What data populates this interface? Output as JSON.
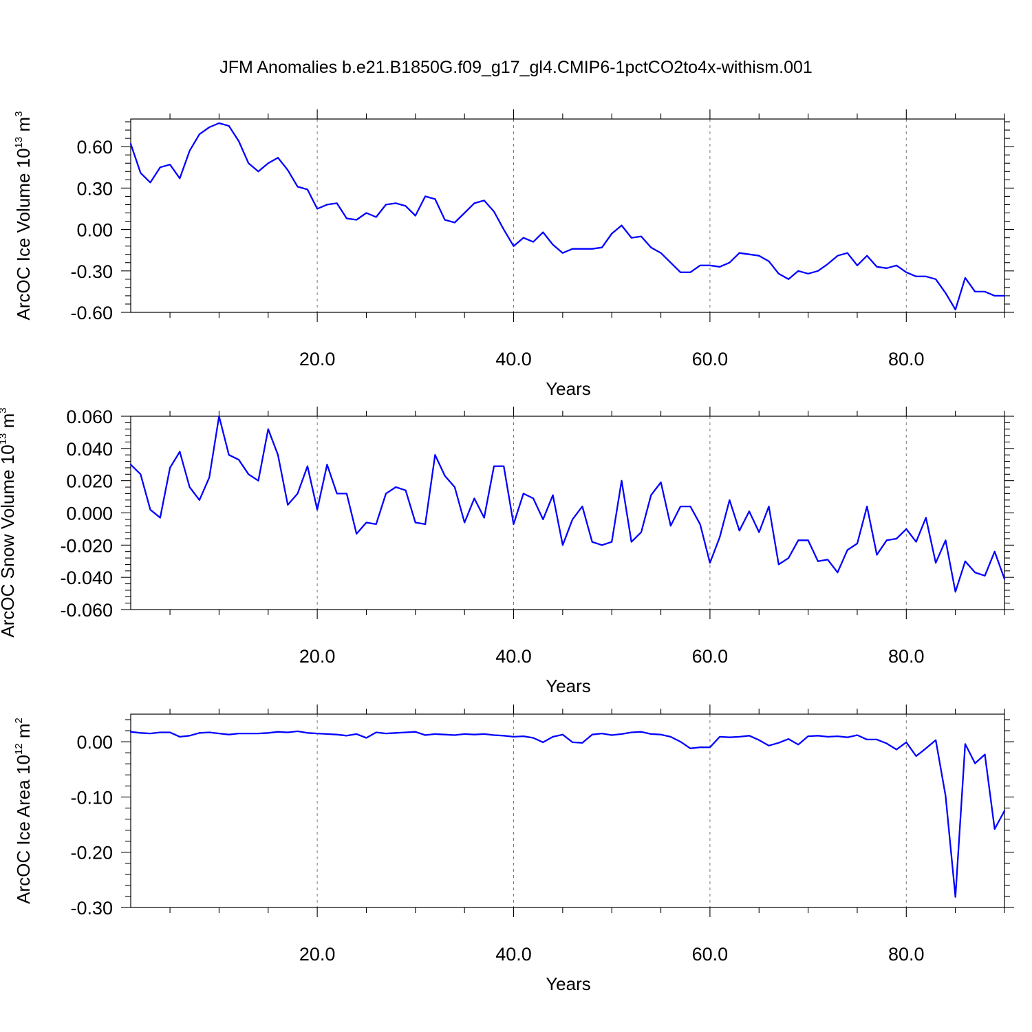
{
  "title": "JFM Anomalies b.e21.B1850G.f09_g17_gl4.CMIP6-1pctCO2to4x-withism.001",
  "line_color": "#0000ff",
  "chart_data": [
    {
      "type": "line",
      "ylabel": "ArcOC Ice Volume 10",
      "ylabel_exp": "13",
      "ylabel_unit": " m",
      "ylabel_unit_exp": "3",
      "xlabel": "Years",
      "xlim": [
        1,
        90
      ],
      "ylim": [
        -0.6,
        0.8
      ],
      "xticks": [
        20,
        40,
        60,
        80
      ],
      "xtick_labels": [
        "20.0",
        "40.0",
        "60.0",
        "80.0"
      ],
      "yticks": [
        0.6,
        0.3,
        0.0,
        -0.3,
        -0.6
      ],
      "ytick_labels": [
        "0.60",
        "0.30",
        "0.00",
        "-0.30",
        "-0.60"
      ],
      "grid_x": true,
      "series": [
        {
          "x": [
            1,
            2,
            3,
            4,
            5,
            6,
            7,
            8,
            9,
            10,
            11,
            12,
            13,
            14,
            15,
            16,
            17,
            18,
            19,
            20,
            21,
            22,
            23,
            24,
            25,
            26,
            27,
            28,
            29,
            30,
            31,
            32,
            33,
            34,
            35,
            36,
            37,
            38,
            39,
            40,
            41,
            42,
            43,
            44,
            45,
            46,
            47,
            48,
            49,
            50,
            51,
            52,
            53,
            54,
            55,
            56,
            57,
            58,
            59,
            60,
            61,
            62,
            63,
            64,
            65,
            66,
            67,
            68,
            69,
            70,
            71,
            72,
            73,
            74,
            75,
            76,
            77,
            78,
            79,
            80,
            81,
            82,
            83,
            84,
            85,
            86,
            87,
            88,
            89,
            90
          ],
          "values": [
            0.62,
            0.41,
            0.34,
            0.45,
            0.47,
            0.37,
            0.57,
            0.69,
            0.74,
            0.77,
            0.75,
            0.64,
            0.48,
            0.42,
            0.48,
            0.52,
            0.43,
            0.31,
            0.29,
            0.15,
            0.18,
            0.19,
            0.08,
            0.07,
            0.12,
            0.09,
            0.18,
            0.19,
            0.17,
            0.1,
            0.24,
            0.22,
            0.07,
            0.05,
            0.12,
            0.19,
            0.21,
            0.13,
            0.0,
            -0.12,
            -0.06,
            -0.09,
            -0.02,
            -0.11,
            -0.17,
            -0.14,
            -0.14,
            -0.14,
            -0.13,
            -0.03,
            0.03,
            -0.06,
            -0.05,
            -0.13,
            -0.17,
            -0.24,
            -0.31,
            -0.31,
            -0.26,
            -0.26,
            -0.27,
            -0.24,
            -0.17,
            -0.18,
            -0.19,
            -0.23,
            -0.32,
            -0.36,
            -0.3,
            -0.32,
            -0.3,
            -0.25,
            -0.19,
            -0.17,
            -0.26,
            -0.19,
            -0.27,
            -0.28,
            -0.26,
            -0.31,
            -0.34,
            -0.34,
            -0.36,
            -0.46,
            -0.58,
            -0.35,
            -0.45,
            -0.45,
            -0.48,
            -0.48
          ]
        }
      ]
    },
    {
      "type": "line",
      "ylabel": "ArcOC Snow Volume 10",
      "ylabel_exp": "13",
      "ylabel_unit": " m",
      "ylabel_unit_exp": "3",
      "xlabel": "Years",
      "xlim": [
        1,
        90
      ],
      "ylim": [
        -0.06,
        0.06
      ],
      "xticks": [
        20,
        40,
        60,
        80
      ],
      "xtick_labels": [
        "20.0",
        "40.0",
        "60.0",
        "80.0"
      ],
      "yticks": [
        0.06,
        0.04,
        0.02,
        0.0,
        -0.02,
        -0.04,
        -0.06
      ],
      "ytick_labels": [
        "0.060",
        "0.040",
        "0.020",
        "0.000",
        "-0.020",
        "-0.040",
        "-0.060"
      ],
      "grid_x": true,
      "series": [
        {
          "x": [
            1,
            2,
            3,
            4,
            5,
            6,
            7,
            8,
            9,
            10,
            11,
            12,
            13,
            14,
            15,
            16,
            17,
            18,
            19,
            20,
            21,
            22,
            23,
            24,
            25,
            26,
            27,
            28,
            29,
            30,
            31,
            32,
            33,
            34,
            35,
            36,
            37,
            38,
            39,
            40,
            41,
            42,
            43,
            44,
            45,
            46,
            47,
            48,
            49,
            50,
            51,
            52,
            53,
            54,
            55,
            56,
            57,
            58,
            59,
            60,
            61,
            62,
            63,
            64,
            65,
            66,
            67,
            68,
            69,
            70,
            71,
            72,
            73,
            74,
            75,
            76,
            77,
            78,
            79,
            80,
            81,
            82,
            83,
            84,
            85,
            86,
            87,
            88,
            89,
            90
          ],
          "values": [
            0.03,
            0.024,
            0.002,
            -0.003,
            0.028,
            0.038,
            0.016,
            0.008,
            0.022,
            0.06,
            0.036,
            0.033,
            0.024,
            0.02,
            0.052,
            0.036,
            0.005,
            0.012,
            0.029,
            0.002,
            0.03,
            0.012,
            0.012,
            -0.013,
            -0.006,
            -0.007,
            0.012,
            0.016,
            0.014,
            -0.006,
            -0.007,
            0.036,
            0.023,
            0.016,
            -0.006,
            0.009,
            -0.003,
            0.029,
            0.029,
            -0.007,
            0.012,
            0.009,
            -0.004,
            0.011,
            -0.02,
            -0.004,
            0.004,
            -0.018,
            -0.02,
            -0.018,
            0.02,
            -0.018,
            -0.012,
            0.011,
            0.019,
            -0.008,
            0.004,
            0.004,
            -0.007,
            -0.031,
            -0.015,
            0.008,
            -0.011,
            0.001,
            -0.012,
            0.004,
            -0.032,
            -0.028,
            -0.017,
            -0.017,
            -0.03,
            -0.029,
            -0.037,
            -0.023,
            -0.019,
            0.004,
            -0.026,
            -0.017,
            -0.016,
            -0.01,
            -0.018,
            -0.003,
            -0.031,
            -0.017,
            -0.049,
            -0.03,
            -0.037,
            -0.039,
            -0.024,
            -0.041
          ]
        }
      ]
    },
    {
      "type": "line",
      "ylabel": "ArcOC Ice Area 10",
      "ylabel_exp": "12",
      "ylabel_unit": " m",
      "ylabel_unit_exp": "2",
      "xlabel": "Years",
      "xlim": [
        1,
        90
      ],
      "ylim": [
        -0.3,
        0.05
      ],
      "xticks": [
        20,
        40,
        60,
        80
      ],
      "xtick_labels": [
        "20.0",
        "40.0",
        "60.0",
        "80.0"
      ],
      "yticks": [
        0.0,
        -0.1,
        -0.2,
        -0.3
      ],
      "ytick_labels": [
        "0.00",
        "-0.10",
        "-0.20",
        "-0.30"
      ],
      "grid_x": true,
      "series": [
        {
          "x": [
            1,
            2,
            3,
            4,
            5,
            6,
            7,
            8,
            9,
            10,
            11,
            12,
            13,
            14,
            15,
            16,
            17,
            18,
            19,
            20,
            21,
            22,
            23,
            24,
            25,
            26,
            27,
            28,
            29,
            30,
            31,
            32,
            33,
            34,
            35,
            36,
            37,
            38,
            39,
            40,
            41,
            42,
            43,
            44,
            45,
            46,
            47,
            48,
            49,
            50,
            51,
            52,
            53,
            54,
            55,
            56,
            57,
            58,
            59,
            60,
            61,
            62,
            63,
            64,
            65,
            66,
            67,
            68,
            69,
            70,
            71,
            72,
            73,
            74,
            75,
            76,
            77,
            78,
            79,
            80,
            81,
            82,
            83,
            84,
            85,
            86,
            87,
            88,
            89,
            90
          ],
          "values": [
            0.018,
            0.016,
            0.015,
            0.017,
            0.017,
            0.009,
            0.011,
            0.016,
            0.017,
            0.015,
            0.013,
            0.015,
            0.015,
            0.015,
            0.016,
            0.018,
            0.017,
            0.019,
            0.016,
            0.015,
            0.014,
            0.013,
            0.011,
            0.014,
            0.007,
            0.017,
            0.015,
            0.016,
            0.017,
            0.018,
            0.012,
            0.014,
            0.013,
            0.012,
            0.014,
            0.013,
            0.014,
            0.012,
            0.011,
            0.009,
            0.01,
            0.007,
            -0.001,
            0.009,
            0.013,
            -0.001,
            -0.002,
            0.013,
            0.015,
            0.012,
            0.014,
            0.017,
            0.018,
            0.014,
            0.013,
            0.009,
            0.0,
            -0.012,
            -0.01,
            -0.01,
            0.009,
            0.008,
            0.009,
            0.011,
            0.003,
            -0.007,
            -0.002,
            0.005,
            -0.005,
            0.01,
            0.011,
            0.009,
            0.01,
            0.008,
            0.012,
            0.004,
            0.004,
            -0.003,
            -0.014,
            -0.001,
            -0.026,
            -0.012,
            0.003,
            -0.098,
            -0.281,
            -0.004,
            -0.039,
            -0.023,
            -0.158,
            -0.125
          ]
        }
      ]
    }
  ]
}
